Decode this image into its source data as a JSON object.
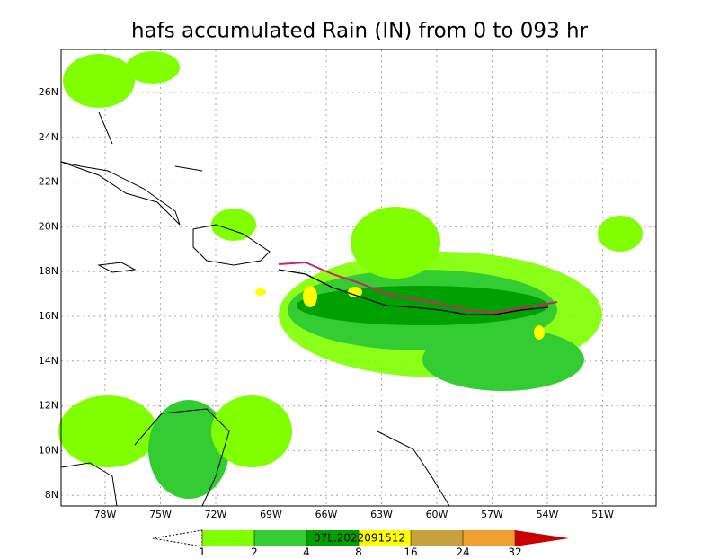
{
  "header": {
    "title": "hafs accumulated Rain (IN) from 0 to 093 hr"
  },
  "map": {
    "lat_ticks": [
      {
        "value": 26,
        "label": "26N"
      },
      {
        "value": 24,
        "label": "24N"
      },
      {
        "value": 22,
        "label": "22N"
      },
      {
        "value": 20,
        "label": "20N"
      },
      {
        "value": 18,
        "label": "18N"
      },
      {
        "value": 16,
        "label": "16N"
      },
      {
        "value": 14,
        "label": "14N"
      },
      {
        "value": 12,
        "label": "12N"
      },
      {
        "value": 10,
        "label": "10N"
      },
      {
        "value": 8,
        "label": "8N"
      }
    ],
    "lon_ticks": [
      {
        "value": -78,
        "label": "78W"
      },
      {
        "value": -75,
        "label": "75W"
      },
      {
        "value": -72,
        "label": "72W"
      },
      {
        "value": -69,
        "label": "69W"
      },
      {
        "value": -66,
        "label": "66W"
      },
      {
        "value": -63,
        "label": "63W"
      },
      {
        "value": -60,
        "label": "60W"
      },
      {
        "value": -57,
        "label": "57W"
      },
      {
        "value": -54,
        "label": "54W"
      },
      {
        "value": -51,
        "label": "51W"
      }
    ],
    "storm_label": "07L.2022091512"
  },
  "colorbar": {
    "levels": [
      1,
      2,
      4,
      8,
      16,
      24,
      32
    ],
    "colors": [
      "#ffffff",
      "#80ff00",
      "#33cc33",
      "#00a000",
      "#ffff00",
      "#c8a040",
      "#f0a030",
      "#c80000"
    ]
  }
}
